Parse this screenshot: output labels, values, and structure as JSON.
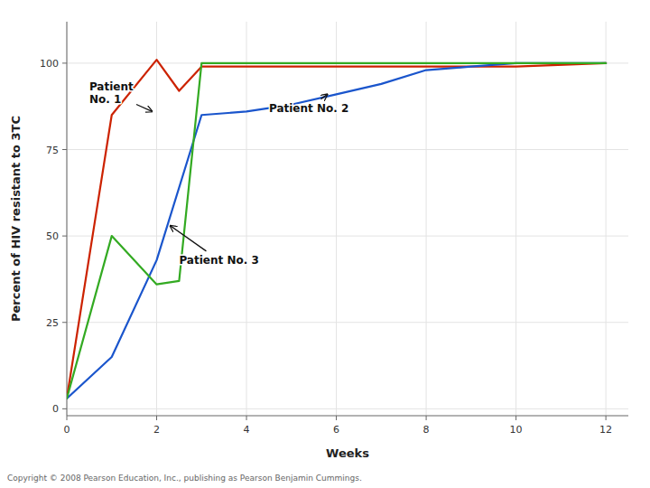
{
  "chart_data": {
    "type": "line",
    "xlabel": "Weeks",
    "ylabel": "Percent of HIV resistant to 3TC",
    "xlim": [
      0,
      12.5
    ],
    "ylim": [
      -2,
      112
    ],
    "xticks": [
      0,
      2,
      4,
      6,
      8,
      10,
      12
    ],
    "yticks": [
      0,
      25,
      50,
      75,
      100
    ],
    "grid": true,
    "series": [
      {
        "color": "#cc2200",
        "x": [
          0,
          1,
          2,
          2.5,
          3,
          4,
          6,
          8,
          10,
          12
        ],
        "values": [
          3,
          85,
          101,
          92,
          99,
          99,
          99,
          99,
          99,
          100
        ]
      },
      {
        "color": "#1a55cc",
        "x": [
          0,
          1,
          2,
          3,
          4,
          5,
          6,
          7,
          8,
          9,
          10,
          11,
          12
        ],
        "values": [
          3,
          15,
          43,
          85,
          86,
          88,
          91,
          94,
          98,
          99,
          100,
          100,
          100
        ]
      },
      {
        "color": "#33aa22",
        "x": [
          0,
          1,
          2,
          2.5,
          3,
          4,
          6,
          8,
          10,
          12
        ],
        "values": [
          3,
          50,
          36,
          37,
          100,
          100,
          100,
          100,
          100,
          100
        ]
      }
    ],
    "annotations": [
      {
        "text": "Patient\nNo. 1",
        "xytext": [
          0.5,
          95
        ],
        "xy": [
          1.9,
          86
        ]
      },
      {
        "text": "Patient No. 2",
        "xytext": [
          4.5,
          87
        ],
        "xy": [
          5.8,
          91
        ]
      },
      {
        "text": "Patient No. 3",
        "xytext": [
          2.5,
          43
        ],
        "xy": [
          2.3,
          53
        ]
      }
    ],
    "caption": "Copyright © 2008 Pearson Education, Inc., publishing as Pearson Benjamin Cummings."
  }
}
